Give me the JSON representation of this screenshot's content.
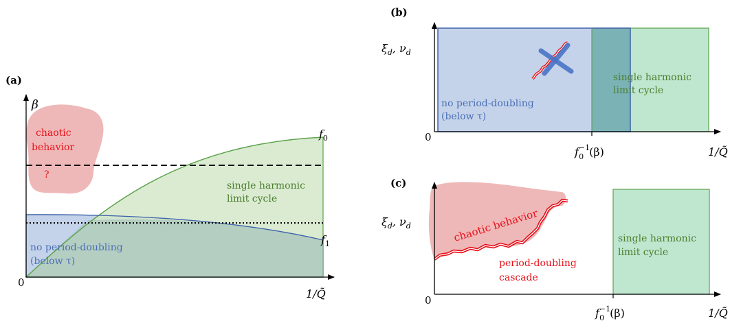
{
  "colors": {
    "blue_fill": "#c5d3ea",
    "blue_stroke": "#3d62a8",
    "blue_text": "#4a6fb5",
    "green_fill": "#d4e7c9",
    "green_stroke": "#5aa24a",
    "green_text": "#4c7f2e",
    "overlap": "#9bbcb8",
    "mint_fill": "#bfe6cf",
    "red_fill": "#efb8b8",
    "red_text": "#e8101a",
    "cross": "#4a74c6",
    "teal_overlap": "#6fa8b2"
  },
  "panel_a": {
    "label": "(a)",
    "y_axis_label": "β",
    "x_axis_label": "1/Q̃",
    "origin_label": "0",
    "curve_f0_label": "f",
    "curve_f0_sub": "0",
    "curve_f1_label": "f",
    "curve_f1_sub": "1",
    "chaotic_line1": "chaotic",
    "chaotic_line2": "behavior",
    "chaotic_q": "?",
    "green_region_line1": "single harmonic",
    "green_region_line2": "limit cycle",
    "blue_region_line1": "no period-doubling",
    "blue_region_line2": "(below τ)"
  },
  "panel_b": {
    "label": "(b)",
    "y_axis_label": "ξ",
    "y_axis_sub": "d",
    "y_axis_mid": ", ν",
    "y_axis_sub2": "d",
    "x_axis_label": "1/Q̃",
    "origin_label": "0",
    "tick_label": "f",
    "tick_sup": "−1",
    "tick_sub": "0",
    "tick_arg": "(β)",
    "blue_region_line1": "no period-doubling",
    "blue_region_line2": "(below τ)",
    "green_region_line1": "single harmonic",
    "green_region_line2": "limit cycle"
  },
  "panel_c": {
    "label": "(c)",
    "y_axis_label": "ξ",
    "y_axis_sub": "d",
    "y_axis_mid": ", ν",
    "y_axis_sub2": "d",
    "x_axis_label": "1/Q̃",
    "origin_label": "0",
    "tick_label": "f",
    "tick_sup": "−1",
    "tick_sub": "0",
    "tick_arg": "(β)",
    "chaotic_label": "chaotic behavior",
    "cascade_line1": "period-doubling",
    "cascade_line2": "cascade",
    "green_region_line1": "single harmonic",
    "green_region_line2": "limit cycle"
  }
}
